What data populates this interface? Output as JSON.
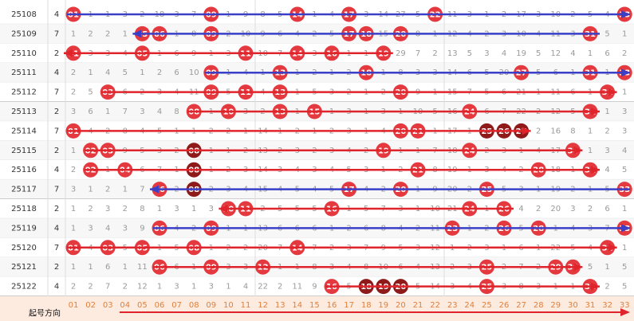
{
  "rows": [
    {
      "issue": "25108",
      "code": 4,
      "cells": [
        "01",
        "1",
        "1",
        "3",
        "2",
        "18",
        "3",
        "7",
        "09",
        "1",
        "9",
        "8",
        "5",
        "14",
        "1",
        "4",
        "17",
        "3",
        "14",
        "27",
        "5",
        "22",
        "11",
        "3",
        "1",
        "2",
        "17",
        "3",
        "10",
        "2",
        "5",
        "4",
        "33"
      ],
      "dark": [],
      "arrow": {
        "dir": "right",
        "color": "#3a3fc8"
      }
    },
    {
      "issue": "25109",
      "code": 7,
      "cells": [
        "1",
        "2",
        "2",
        "1",
        "05",
        "06",
        "1",
        "8",
        "09",
        "2",
        "10",
        "9",
        "6",
        "4",
        "2",
        "5",
        "17",
        "18",
        "15",
        "20",
        "8",
        "1",
        "12",
        "4",
        "2",
        "3",
        "10",
        "4",
        "11",
        "3",
        "31",
        "5",
        "1"
      ],
      "dark": [],
      "arrow": {
        "dir": "left",
        "color": "#3a3fc8"
      }
    },
    {
      "issue": "25110",
      "code": 2,
      "cells": [
        "01",
        "3",
        "3",
        "4",
        "05",
        "1",
        "6",
        "9",
        "1",
        "3",
        "11",
        "10",
        "7",
        "14",
        "3",
        "16",
        "1",
        "1",
        "19",
        "29",
        "7",
        "2",
        "13",
        "5",
        "3",
        "4",
        "19",
        "5",
        "12",
        "4",
        "1",
        "6",
        "2"
      ],
      "dark": [],
      "arrow": {
        "dir": "left",
        "color": "#e0242c"
      }
    },
    {
      "issue": "25111",
      "code": 4,
      "cells": [
        "2",
        "1",
        "4",
        "5",
        "1",
        "2",
        "6",
        "10",
        "09",
        "1",
        "4",
        "1",
        "13",
        "1",
        "2",
        "1",
        "2",
        "18",
        "1",
        "8",
        "3",
        "3",
        "14",
        "6",
        "5",
        "20",
        "27",
        "5",
        "6",
        "1",
        "31",
        "1",
        "33"
      ],
      "dark": [],
      "arrow": {
        "dir": "right",
        "color": "#3a3fc8"
      }
    },
    {
      "issue": "25112",
      "code": 7,
      "cells": [
        "2",
        "5",
        "03",
        "6",
        "2",
        "3",
        "4",
        "11",
        "09",
        "5",
        "11",
        "4",
        "13",
        "1",
        "5",
        "3",
        "2",
        "1",
        "2",
        "20",
        "9",
        "1",
        "15",
        "7",
        "5",
        "6",
        "21",
        "1",
        "11",
        "6",
        "1",
        "32",
        "1"
      ],
      "dark": [],
      "arrow": {
        "dir": "right",
        "color": "#e0242c"
      }
    },
    {
      "issue": "25113",
      "code": 2,
      "cells": [
        "3",
        "6",
        "1",
        "7",
        "3",
        "4",
        "8",
        "08",
        "1",
        "10",
        "3",
        "2",
        "13",
        "1",
        "15",
        "1",
        "3",
        "1",
        "3",
        "1",
        "10",
        "5",
        "16",
        "24",
        "6",
        "7",
        "22",
        "2",
        "12",
        "5",
        "31",
        "1",
        "3"
      ],
      "dark": [],
      "arrow": {
        "dir": "right",
        "color": "#e0242c"
      }
    },
    {
      "issue": "25114",
      "code": 7,
      "cells": [
        "01",
        "4",
        "2",
        "8",
        "4",
        "5",
        "1",
        "1",
        "2",
        "2",
        "1",
        "14",
        "1",
        "2",
        "1",
        "2",
        "3",
        "1",
        "4",
        "20",
        "21",
        "1",
        "17",
        "1",
        "25",
        "26",
        "27",
        "2",
        "16",
        "8",
        "1",
        "2",
        "3"
      ],
      "dark": [
        "25",
        "26",
        "27"
      ],
      "arrow": {
        "dir": "right",
        "color": "#e0242c"
      }
    },
    {
      "issue": "25115",
      "code": 2,
      "cells": [
        "1",
        "02",
        "03",
        "9",
        "5",
        "3",
        "2",
        "08",
        "1",
        "1",
        "2",
        "13",
        "2",
        "3",
        "2",
        "3",
        "4",
        "2",
        "19",
        "1",
        "1",
        "7",
        "18",
        "24",
        "2",
        "3",
        "1",
        "4",
        "17",
        "30",
        "1",
        "3",
        "4"
      ],
      "dark": [
        "08"
      ],
      "arrow": {
        "dir": "right",
        "color": "#e0242c"
      }
    },
    {
      "issue": "25116",
      "code": 4,
      "cells": [
        "2",
        "02",
        "1",
        "04",
        "6",
        "7",
        "1",
        "08",
        "1",
        "2",
        "3",
        "14",
        "3",
        "4",
        "3",
        "4",
        "5",
        "3",
        "1",
        "2",
        "21",
        "8",
        "19",
        "1",
        "3",
        "4",
        "2",
        "28",
        "18",
        "1",
        "31",
        "4",
        "5"
      ],
      "dark": [
        "08"
      ],
      "arrow": {
        "dir": "right",
        "color": "#e0242c"
      }
    },
    {
      "issue": "25117",
      "code": 7,
      "cells": [
        "3",
        "1",
        "2",
        "1",
        "7",
        "06",
        "2",
        "08",
        "2",
        "3",
        "4",
        "15",
        "4",
        "5",
        "4",
        "5",
        "17",
        "4",
        "2",
        "20",
        "1",
        "9",
        "20",
        "2",
        "25",
        "5",
        "3",
        "1",
        "19",
        "2",
        "1",
        "5",
        "33"
      ],
      "dark": [
        "08"
      ],
      "arrow": {
        "dir": "left",
        "color": "#3a3fc8"
      }
    },
    {
      "issue": "25118",
      "code": 2,
      "cells": [
        "1",
        "2",
        "3",
        "2",
        "8",
        "1",
        "3",
        "1",
        "3",
        "10",
        "11",
        "2",
        "5",
        "5",
        "5",
        "16",
        "1",
        "5",
        "7",
        "3",
        "1",
        "10",
        "21",
        "24",
        "1",
        "26",
        "4",
        "2",
        "20",
        "3",
        "2",
        "6",
        "1"
      ],
      "dark": [],
      "arrow": {
        "dir": "left",
        "color": "#e0242c"
      }
    },
    {
      "issue": "25119",
      "code": 4,
      "cells": [
        "1",
        "3",
        "4",
        "3",
        "9",
        "06",
        "4",
        "2",
        "09",
        "1",
        "1",
        "13",
        "6",
        "6",
        "6",
        "1",
        "2",
        "6",
        "8",
        "4",
        "2",
        "11",
        "23",
        "1",
        "2",
        "26",
        "5",
        "28",
        "1",
        "4",
        "3",
        "7",
        "33"
      ],
      "dark": [],
      "arrow": {
        "dir": "right",
        "color": "#3a3fc8"
      }
    },
    {
      "issue": "25120",
      "code": 7,
      "cells": [
        "01",
        "4",
        "03",
        "5",
        "05",
        "1",
        "5",
        "08",
        "1",
        "2",
        "2",
        "20",
        "7",
        "14",
        "7",
        "2",
        "3",
        "7",
        "9",
        "5",
        "3",
        "12",
        "1",
        "2",
        "3",
        "1",
        "6",
        "1",
        "22",
        "5",
        "4",
        "32",
        "1"
      ],
      "dark": [],
      "arrow": {
        "dir": "right",
        "color": "#e0242c"
      }
    },
    {
      "issue": "25121",
      "code": 2,
      "cells": [
        "1",
        "1",
        "6",
        "1",
        "11",
        "06",
        "6",
        "1",
        "09",
        "3",
        "3",
        "12",
        "1",
        "1",
        "8",
        "3",
        "4",
        "8",
        "10",
        "6",
        "4",
        "13",
        "2",
        "3",
        "25",
        "2",
        "7",
        "2",
        "29",
        "30",
        "5",
        "1",
        "5"
      ],
      "dark": [],
      "arrow": {
        "dir": "right",
        "color": "#e0242c"
      }
    },
    {
      "issue": "25122",
      "code": 4,
      "cells": [
        "2",
        "2",
        "7",
        "2",
        "12",
        "1",
        "3",
        "1",
        "3",
        "1",
        "4",
        "22",
        "2",
        "11",
        "9",
        "16",
        "5",
        "18",
        "19",
        "20",
        "5",
        "14",
        "3",
        "4",
        "25",
        "3",
        "8",
        "3",
        "1",
        "1",
        "31",
        "2",
        "5"
      ],
      "dark": [
        "18",
        "19",
        "20"
      ],
      "arrow": {
        "dir": "right",
        "color": "#e0242c"
      }
    }
  ],
  "footer": {
    "labels": [
      "01",
      "02",
      "03",
      "04",
      "05",
      "06",
      "07",
      "08",
      "09",
      "10",
      "11",
      "12",
      "13",
      "14",
      "15",
      "16",
      "17",
      "18",
      "19",
      "20",
      "21",
      "22",
      "23",
      "24",
      "25",
      "26",
      "27",
      "28",
      "29",
      "30",
      "31",
      "32",
      "33"
    ]
  },
  "note": "起号方向"
}
